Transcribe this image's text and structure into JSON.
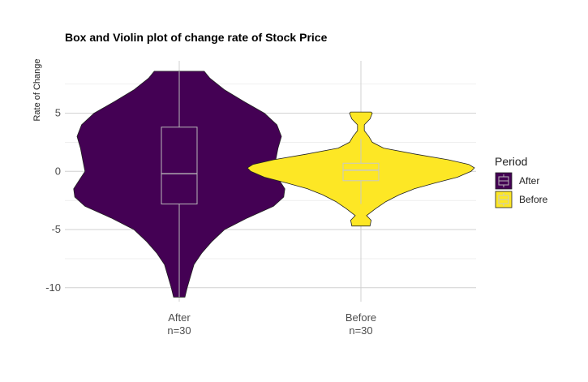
{
  "chart_data": {
    "type": "violin",
    "title": "Box and Violin plot of change rate of Stock Price",
    "xlabel": "",
    "ylabel": "Rate of Change",
    "ylim": [
      -11.2,
      9.5
    ],
    "yticks": [
      -10,
      -5,
      0,
      5
    ],
    "ytick_labels": [
      "-10",
      "-5",
      "0",
      "5"
    ],
    "grid": true,
    "legend": {
      "title": "Period",
      "placement": "right",
      "entries": [
        "After",
        "Before"
      ]
    },
    "categories": [
      "After",
      "Before"
    ],
    "category_labels": [
      {
        "name": "After",
        "n": "n=30"
      },
      {
        "name": "Before",
        "n": "n=30"
      }
    ],
    "series": [
      {
        "name": "After",
        "color": "#440154",
        "box": {
          "q1": -2.8,
          "median": -0.2,
          "q3": 3.8,
          "whisker_low": -10.8,
          "whisker_high": 8.6
        },
        "violin": [
          [
            -10.8,
            0.05
          ],
          [
            -10.0,
            0.07
          ],
          [
            -9.0,
            0.1
          ],
          [
            -8.0,
            0.13
          ],
          [
            -7.0,
            0.2
          ],
          [
            -6.0,
            0.29
          ],
          [
            -5.0,
            0.4
          ],
          [
            -4.0,
            0.6
          ],
          [
            -3.0,
            0.83
          ],
          [
            -2.2,
            0.92
          ],
          [
            -1.5,
            0.93
          ],
          [
            -0.6,
            0.87
          ],
          [
            0.0,
            0.83
          ],
          [
            1.0,
            0.85
          ],
          [
            2.0,
            0.87
          ],
          [
            3.0,
            0.9
          ],
          [
            4.0,
            0.86
          ],
          [
            5.0,
            0.75
          ],
          [
            6.0,
            0.57
          ],
          [
            7.0,
            0.4
          ],
          [
            8.0,
            0.27
          ],
          [
            8.6,
            0.22
          ]
        ]
      },
      {
        "name": "Before",
        "color": "#FDE725",
        "box": {
          "q1": -0.8,
          "median": 0.1,
          "q3": 0.7,
          "whisker_low": -2.8,
          "whisker_high": 2.8
        },
        "violin": [
          [
            -4.7,
            0.08
          ],
          [
            -4.2,
            0.09
          ],
          [
            -3.8,
            0.05
          ],
          [
            -3.2,
            0.13
          ],
          [
            -2.6,
            0.22
          ],
          [
            -2.0,
            0.34
          ],
          [
            -1.5,
            0.47
          ],
          [
            -1.0,
            0.65
          ],
          [
            -0.5,
            0.85
          ],
          [
            0.0,
            0.97
          ],
          [
            0.3,
            1.0
          ],
          [
            0.6,
            0.95
          ],
          [
            1.0,
            0.77
          ],
          [
            1.5,
            0.47
          ],
          [
            2.0,
            0.2
          ],
          [
            2.5,
            0.1
          ],
          [
            3.0,
            0.07
          ],
          [
            3.5,
            0.03
          ],
          [
            4.0,
            0.03
          ],
          [
            4.5,
            0.08
          ],
          [
            5.0,
            0.1
          ],
          [
            5.1,
            0.09
          ]
        ]
      }
    ]
  }
}
